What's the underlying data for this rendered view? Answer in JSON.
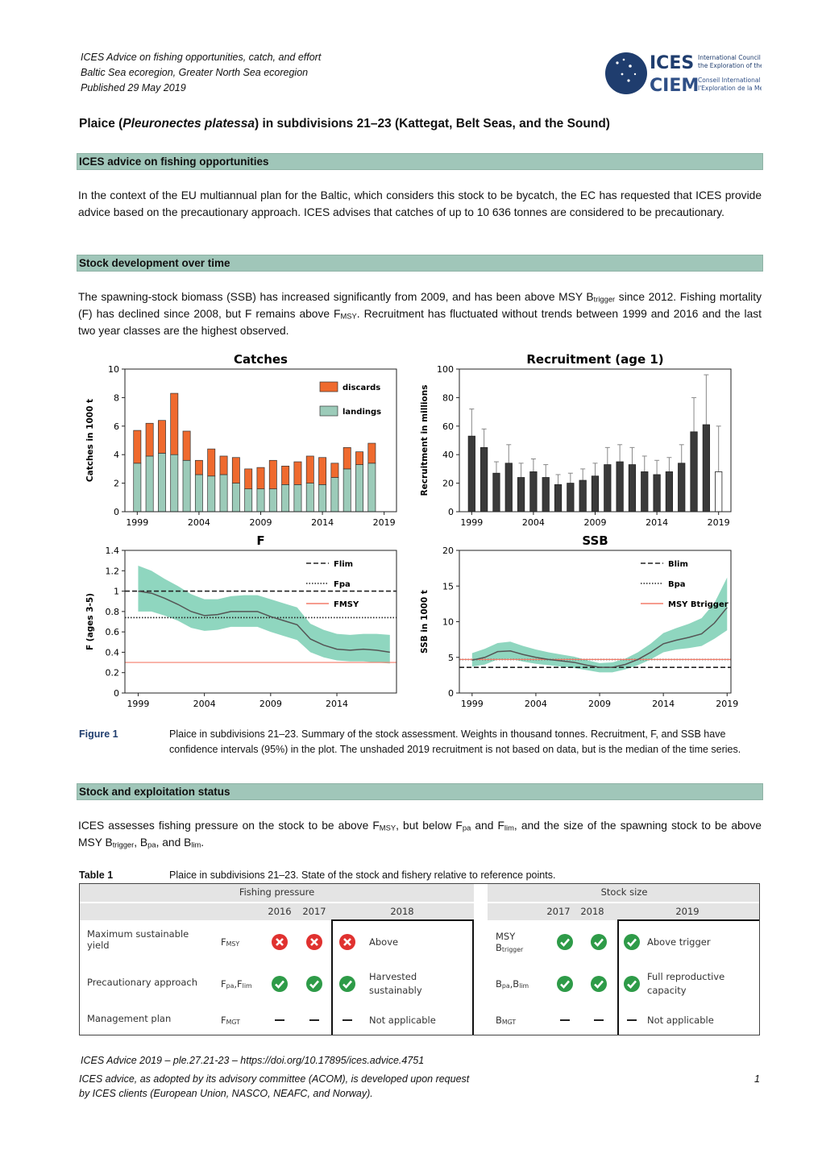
{
  "header": {
    "lines": [
      "ICES Advice on fishing opportunities, catch, and effort",
      "Baltic Sea ecoregion, Greater North Sea ecoregion",
      "Published 29 May 2019"
    ],
    "logo": {
      "name1": "ICES",
      "name2": "CIEM",
      "text1": [
        "International Council for",
        "the Exploration of the Sea"
      ],
      "text2": [
        "Conseil International pour",
        "l'Exploration de la Mer"
      ]
    }
  },
  "title": [
    "Plaice (",
    {
      "text": "Pleuronectes platessa",
      "style": "italic"
    },
    ") in subdivisions 21–23 (Kattegat, Belt Seas, and the Sound)"
  ],
  "sections": [
    {
      "heading": "ICES advice on fishing opportunities",
      "paragraph": [
        "In the context of the EU multiannual plan for the Baltic, which considers this stock to be bycatch, the EC has requested that ICES provide advice based on the precautionary approach. ICES advises that catches of up to 10 636 tonnes are considered to be precautionary."
      ]
    },
    {
      "heading": "Stock development over time",
      "paragraph": [
        "The spawning-stock biomass (SSB) has increased significantly from 2009, and has been above MSY B",
        {
          "text": "trigger",
          "style": "sub"
        },
        " since 2012. Fishing mortality (F) has declined since 2008, but F remains above F",
        {
          "text": "MSY",
          "style": "sub"
        },
        ". Recruitment has fluctuated without trends between 1999 and 2016 and the last two year classes are the highest observed."
      ]
    },
    {
      "heading": "Stock and exploitation status",
      "paragraph": [
        "ICES assesses fishing pressure on the stock to be above F",
        {
          "text": "MSY",
          "style": "sub"
        },
        ", but below F",
        {
          "text": "pa",
          "style": "sub"
        },
        " and F",
        {
          "text": "lim",
          "style": "sub"
        },
        ", and the size of the spawning stock to be above MSY B",
        {
          "text": "trigger",
          "style": "sub"
        },
        ", B",
        {
          "text": "pa",
          "style": "sub"
        },
        ", and B",
        {
          "text": "lim",
          "style": "sub"
        },
        "."
      ]
    }
  ],
  "figure": {
    "label": "Figure 1",
    "caption": "Plaice in subdivisions 21–23. Summary of the stock assessment. Weights in thousand tonnes. Recruitment, F, and SSB have confidence intervals (95%) in the plot. The unshaded 2019 recruitment is not based on data, but is the median of the time series.",
    "charts": [
      {
        "type": "stacked-bar",
        "title": "Catches",
        "y_label": "Catches in 1000 t",
        "x": [
          1999,
          2000,
          2001,
          2002,
          2003,
          2004,
          2005,
          2006,
          2007,
          2008,
          2009,
          2010,
          2011,
          2012,
          2013,
          2014,
          2015,
          2016,
          2017,
          2018
        ],
        "series": [
          {
            "name": "landings",
            "color": "#9ccbb9",
            "values": [
              3.4,
              3.9,
              4.1,
              4.0,
              3.6,
              2.6,
              2.5,
              2.6,
              2.0,
              1.6,
              1.6,
              1.6,
              1.9,
              1.9,
              2.0,
              1.9,
              2.4,
              3.0,
              3.3,
              3.4
            ]
          },
          {
            "name": "discards",
            "color": "#ef6a2e",
            "values": [
              2.3,
              2.3,
              2.3,
              4.3,
              2.05,
              1.0,
              1.9,
              1.3,
              1.8,
              1.4,
              1.5,
              2.0,
              1.3,
              1.6,
              1.9,
              1.9,
              1.0,
              1.5,
              0.9,
              1.4
            ]
          }
        ],
        "xlim": [
          1998,
          2020
        ],
        "xticks": [
          1999,
          2004,
          2009,
          2014,
          2019
        ],
        "ylim": [
          0,
          10
        ],
        "yticks": [
          0,
          2,
          4,
          6,
          8,
          10
        ]
      },
      {
        "type": "bar",
        "title": "Recruitment (age 1)",
        "y_label": "Recruitment in millions",
        "x": [
          1999,
          2000,
          2001,
          2002,
          2003,
          2004,
          2005,
          2006,
          2007,
          2008,
          2009,
          2010,
          2011,
          2012,
          2013,
          2014,
          2015,
          2016,
          2017,
          2018,
          2019
        ],
        "values": [
          53,
          45,
          27,
          34,
          24,
          28,
          24,
          19,
          20,
          22,
          25,
          33,
          35,
          33,
          28,
          26,
          28,
          34,
          56,
          61,
          28
        ],
        "lower": [
          35,
          32,
          20,
          25,
          18,
          20,
          18,
          14,
          14,
          16,
          18,
          23,
          25,
          24,
          20,
          18,
          20,
          24,
          35,
          38,
          10
        ],
        "upper": [
          72,
          58,
          35,
          47,
          34,
          37,
          33,
          26,
          27,
          30,
          34,
          45,
          47,
          45,
          39,
          36,
          38,
          47,
          80,
          96,
          60
        ],
        "colors": [
          "#3a3a3a",
          "#3a3a3a",
          "#3a3a3a",
          "#3a3a3a",
          "#3a3a3a",
          "#3a3a3a",
          "#3a3a3a",
          "#3a3a3a",
          "#3a3a3a",
          "#3a3a3a",
          "#3a3a3a",
          "#3a3a3a",
          "#3a3a3a",
          "#3a3a3a",
          "#3a3a3a",
          "#3a3a3a",
          "#3a3a3a",
          "#3a3a3a",
          "#3a3a3a",
          "#3a3a3a",
          "#ffffff"
        ],
        "xlim": [
          1998,
          2020
        ],
        "xticks": [
          1999,
          2004,
          2009,
          2014,
          2019
        ],
        "ylim": [
          0,
          100
        ],
        "yticks": [
          0,
          20,
          40,
          60,
          80,
          100
        ]
      },
      {
        "type": "line",
        "title": "F",
        "y_label": "F (ages 3-5)",
        "x": [
          1999,
          2000,
          2001,
          2002,
          2003,
          2004,
          2005,
          2006,
          2007,
          2008,
          2009,
          2010,
          2011,
          2012,
          2013,
          2014,
          2015,
          2016,
          2017,
          2018
        ],
        "values": [
          1.0,
          0.98,
          0.93,
          0.87,
          0.8,
          0.76,
          0.77,
          0.8,
          0.8,
          0.8,
          0.75,
          0.71,
          0.67,
          0.53,
          0.47,
          0.43,
          0.42,
          0.43,
          0.42,
          0.4
        ],
        "upper": [
          1.25,
          1.2,
          1.12,
          1.05,
          0.97,
          0.92,
          0.92,
          0.95,
          0.96,
          0.96,
          0.92,
          0.88,
          0.84,
          0.68,
          0.62,
          0.58,
          0.57,
          0.58,
          0.58,
          0.57
        ],
        "lower": [
          0.8,
          0.8,
          0.76,
          0.71,
          0.64,
          0.61,
          0.62,
          0.65,
          0.65,
          0.65,
          0.6,
          0.56,
          0.52,
          0.4,
          0.35,
          0.32,
          0.31,
          0.31,
          0.3,
          0.29
        ],
        "color": "#555555",
        "band_color": "#8fd6bf",
        "reference_lines": [
          {
            "name": "Flim",
            "value": 1.0,
            "style": "dashed",
            "color": "#222222"
          },
          {
            "name": "Fpa",
            "value": 0.74,
            "style": "dotted",
            "color": "#222222"
          },
          {
            "name": "FMSY",
            "value": 0.3,
            "style": "solid",
            "color": "#f47c6a"
          }
        ],
        "legend": "upper right",
        "xlim": [
          1998,
          2018.5
        ],
        "xticks": [
          1999,
          2004,
          2009,
          2014
        ],
        "ylim": [
          0,
          1.4
        ],
        "yticks": [
          0,
          0.2,
          0.4,
          0.6,
          0.8,
          1,
          1.2,
          1.4
        ]
      },
      {
        "type": "line",
        "title": "SSB",
        "y_label": "SSB in 1000 t",
        "x": [
          1999,
          2000,
          2001,
          2002,
          2003,
          2004,
          2005,
          2006,
          2007,
          2008,
          2009,
          2010,
          2011,
          2012,
          2013,
          2014,
          2015,
          2016,
          2017,
          2018,
          2019
        ],
        "values": [
          4.6,
          5.0,
          5.8,
          5.9,
          5.4,
          5.0,
          4.7,
          4.5,
          4.3,
          3.9,
          3.6,
          3.6,
          4.0,
          4.7,
          5.7,
          6.9,
          7.4,
          7.8,
          8.3,
          9.8,
          12.0
        ],
        "upper": [
          5.6,
          6.2,
          7.0,
          7.2,
          6.6,
          6.1,
          5.7,
          5.4,
          5.1,
          4.6,
          4.2,
          4.3,
          4.8,
          5.7,
          6.9,
          8.4,
          9.1,
          9.7,
          10.5,
          12.6,
          16.2
        ],
        "lower": [
          3.7,
          4.0,
          4.7,
          4.8,
          4.4,
          4.1,
          3.9,
          3.7,
          3.5,
          3.2,
          2.9,
          2.9,
          3.3,
          3.9,
          4.7,
          5.7,
          6.1,
          6.3,
          6.6,
          7.6,
          8.8
        ],
        "color": "#555555",
        "band_color": "#8fd6bf",
        "reference_lines": [
          {
            "name": "Blim",
            "value": 3.6,
            "style": "dashed",
            "color": "#222222"
          },
          {
            "name": "Bpa",
            "value": 4.7,
            "style": "dotted",
            "color": "#222222"
          },
          {
            "name": "MSY Btrigger",
            "value": 4.7,
            "style": "solid",
            "color": "#f47c6a"
          }
        ],
        "legend": "upper right",
        "xlim": [
          1998,
          2019.3
        ],
        "xticks": [
          1999,
          2004,
          2009,
          2014,
          2019
        ],
        "ylim": [
          0,
          20
        ],
        "yticks": [
          0,
          5,
          10,
          15,
          20
        ]
      }
    ]
  },
  "table": {
    "label": "Table 1",
    "caption": "Plaice in subdivisions 21–23. State of the stock and fishery relative to reference points.",
    "groups": [
      "Fishing pressure",
      "Stock size"
    ],
    "years": [
      [
        2016,
        2017,
        2018
      ],
      [
        2017,
        2018,
        2019
      ]
    ],
    "rows": [
      {
        "label": "Maximum sustainable yield",
        "refs": [
          [
            "F",
            {
              "text": "MSY",
              "style": "sub"
            }
          ],
          [
            "MSY B",
            {
              "text": "trigger",
              "style": "sub"
            }
          ]
        ],
        "status": [
          [
            "cross",
            "cross",
            "cross"
          ],
          [
            "check",
            "check",
            "check"
          ]
        ],
        "texts": [
          "Above",
          "Above trigger"
        ]
      },
      {
        "label": "Precautionary approach",
        "refs": [
          [
            "F",
            {
              "text": "pa",
              "style": "sub"
            },
            ",F",
            {
              "text": "lim",
              "style": "sub"
            }
          ],
          [
            "B",
            {
              "text": "pa",
              "style": "sub"
            },
            ",B",
            {
              "text": "lim",
              "style": "sub"
            }
          ]
        ],
        "status": [
          [
            "check",
            "check",
            "check"
          ],
          [
            "check",
            "check",
            "check"
          ]
        ],
        "texts": [
          "Harvested sustainably",
          "Full reproductive capacity"
        ]
      },
      {
        "label": "Management plan",
        "refs": [
          [
            "F",
            {
              "text": "MGT",
              "style": "sub"
            }
          ],
          [
            "B",
            {
              "text": "MGT",
              "style": "sub"
            }
          ]
        ],
        "status": [
          [
            "dash",
            "dash",
            "dash"
          ],
          [
            "dash",
            "dash",
            "dash"
          ]
        ],
        "texts": [
          "Not applicable",
          "Not applicable"
        ]
      }
    ]
  },
  "footer": {
    "lines": [
      "ICES Advice 2019 – ple.27.21-23 – https://doi.org/10.17895/ices.advice.4751",
      "ICES advice, as adopted by its advisory committee (ACOM), is developed upon request",
      "by ICES clients (European Union, NASCO, NEAFC, and Norway)."
    ],
    "page": "1"
  }
}
